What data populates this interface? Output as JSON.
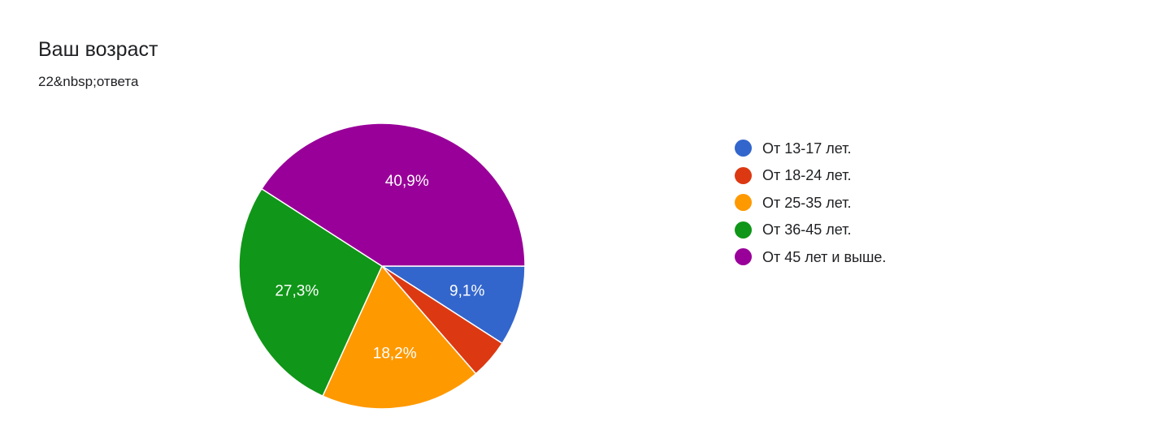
{
  "question": {
    "title": "Ваш возраст",
    "responses": "22&nbsp;ответа"
  },
  "chart_data": {
    "type": "pie",
    "title": "Ваш возраст",
    "legend_position": "right",
    "start_angle_deg": 0,
    "direction": "clockwise",
    "slices": [
      {
        "label": "От 13-17 лет.",
        "value": 9.1,
        "display": "9,1%",
        "color": "#3366cc"
      },
      {
        "label": "От 18-24 лет.",
        "value": 4.5,
        "display": "",
        "color": "#dc3912"
      },
      {
        "label": "От 25-35 лет.",
        "value": 18.2,
        "display": "18,2%",
        "color": "#ff9900"
      },
      {
        "label": "От 36-45 лет.",
        "value": 27.3,
        "display": "27,3%",
        "color": "#109618"
      },
      {
        "label": "От 45 лет и выше.",
        "value": 40.9,
        "display": "40,9%",
        "color": "#990099"
      }
    ]
  }
}
